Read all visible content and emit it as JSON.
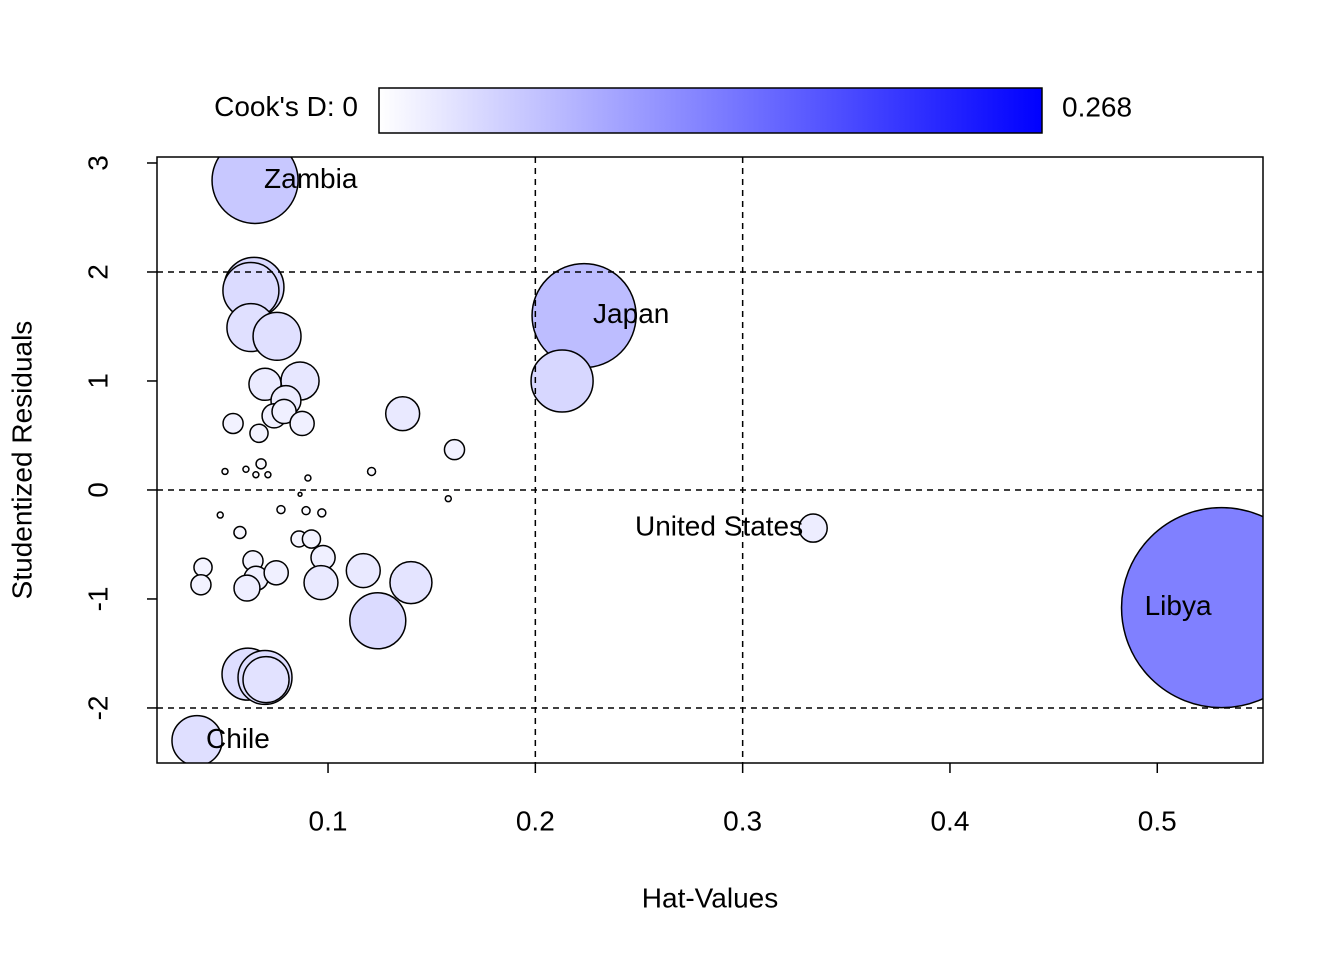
{
  "chart_data": {
    "type": "scatter",
    "xlabel": "Hat-Values",
    "ylabel": "Studentized Residuals",
    "xlim": [
      0.0175,
      0.551
    ],
    "ylim": [
      -2.505,
      3.055
    ],
    "xticks": [
      0.1,
      0.2,
      0.3,
      0.4,
      0.5
    ],
    "yticks": [
      -2,
      -1,
      0,
      1,
      2,
      3
    ],
    "hlines": [
      -2,
      0,
      2
    ],
    "vlines": [
      0.2,
      0.3
    ],
    "colorbar": {
      "title": "Cook's D:",
      "min": 0,
      "max": 0.268,
      "colors": [
        "#ffffff",
        "#0000ff"
      ]
    },
    "x": [
      0.0648,
      0.2235,
      0.2129,
      0.531,
      0.334,
      0.0368,
      0.0643,
      0.0628,
      0.0628,
      0.0754,
      0.0696,
      0.0865,
      0.0797,
      0.074,
      0.0788,
      0.0875,
      0.0542,
      0.0667,
      0.136,
      0.161,
      0.121,
      0.0677,
      0.0604,
      0.0503,
      0.0652,
      0.071,
      0.0903,
      0.158,
      0.0865,
      0.048,
      0.0773,
      0.0894,
      0.097,
      0.0575,
      0.086,
      0.092,
      0.0976,
      0.0638,
      0.0397,
      0.0653,
      0.075,
      0.0387,
      0.0609,
      0.0966,
      0.117,
      0.14,
      0.124,
      0.0614,
      0.0696,
      0.0701
    ],
    "y": [
      2.84,
      1.6,
      1.0,
      -1.08,
      -0.35,
      -2.3,
      1.86,
      1.83,
      1.49,
      1.41,
      0.97,
      1.0,
      0.82,
      0.68,
      0.72,
      0.61,
      0.61,
      0.52,
      0.7,
      0.37,
      0.17,
      0.24,
      0.19,
      0.17,
      0.14,
      0.14,
      0.11,
      -0.08,
      -0.04,
      -0.23,
      -0.18,
      -0.19,
      -0.21,
      -0.39,
      -0.45,
      -0.45,
      -0.62,
      -0.65,
      -0.71,
      -0.81,
      -0.76,
      -0.87,
      -0.9,
      -0.85,
      -0.74,
      -0.85,
      -1.2,
      -1.69,
      -1.72,
      -1.74
    ],
    "sizes": [
      0.0496,
      0.0725,
      0.0258,
      0.268,
      0.0053,
      0.0168,
      0.024,
      0.021,
      0.0154,
      0.0154,
      0.0069,
      0.0097,
      0.006,
      0.0039,
      0.0039,
      0.0039,
      0.0027,
      0.0022,
      0.0077,
      0.0027,
      0.00043,
      0.00067,
      0.00024,
      0.00024,
      0.00024,
      0.00024,
      0.00024,
      0.00024,
      0.0001,
      0.00024,
      0.00043,
      0.00043,
      0.00043,
      0.00096,
      0.0017,
      0.0022,
      0.0039,
      0.0027,
      0.0022,
      0.0039,
      0.0039,
      0.0027,
      0.0045,
      0.0077,
      0.0077,
      0.0118,
      0.021,
      0.0181,
      0.0195,
      0.0142
    ],
    "labels": [
      "Zambia",
      "Japan",
      null,
      "Libya",
      "United States",
      "Chile",
      null,
      null,
      null,
      null,
      null,
      null,
      null,
      null,
      null,
      null,
      null,
      null,
      null,
      null,
      null,
      null,
      null,
      null,
      null,
      null,
      null,
      null,
      null,
      null,
      null,
      null,
      null,
      null,
      null,
      null,
      null,
      null,
      null,
      null,
      null,
      null,
      null,
      null,
      null,
      null,
      null,
      null,
      null,
      null
    ]
  }
}
